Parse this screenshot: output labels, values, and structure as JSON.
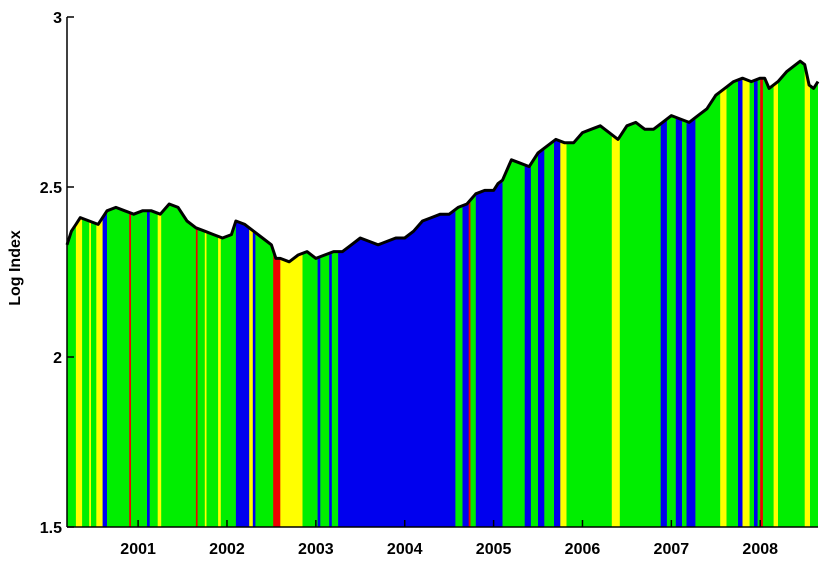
{
  "chart_data": {
    "type": "area",
    "title": "",
    "xlabel": "",
    "ylabel": "Log Index",
    "xlim": [
      2000.2,
      2008.65
    ],
    "ylim": [
      1.5,
      3
    ],
    "x_ticks": [
      {
        "value": 2001,
        "label": "2001"
      },
      {
        "value": 2002,
        "label": "2002"
      },
      {
        "value": 2003,
        "label": "2003"
      },
      {
        "value": 2004,
        "label": "2004"
      },
      {
        "value": 2005,
        "label": "2005"
      },
      {
        "value": 2006,
        "label": "2006"
      },
      {
        "value": 2007,
        "label": "2007"
      },
      {
        "value": 2008,
        "label": "2008"
      }
    ],
    "y_ticks": [
      {
        "value": 1.5,
        "label": "1.5"
      },
      {
        "value": 2,
        "label": "2"
      },
      {
        "value": 2.5,
        "label": "2.5"
      },
      {
        "value": 3,
        "label": "3"
      }
    ],
    "grid": false,
    "legend": "none",
    "regime_colors": {
      "green": "#00ee00",
      "yellow": "#ffff00",
      "blue": "#0000ee",
      "red": "#ee0000"
    },
    "series": [
      {
        "x": [
          2000.2,
          2000.25,
          2000.3,
          2000.35,
          2000.45,
          2000.55,
          2000.65,
          2000.75,
          2000.85,
          2000.95,
          2001.05,
          2001.15,
          2001.25,
          2001.35,
          2001.45,
          2001.55,
          2001.65,
          2001.75,
          2001.85,
          2001.95,
          2002.05,
          2002.1,
          2002.2,
          2002.3,
          2002.4,
          2002.5,
          2002.55,
          2002.6,
          2002.7,
          2002.8,
          2002.9,
          2003.0,
          2003.1,
          2003.2,
          2003.3,
          2003.4,
          2003.5,
          2003.6,
          2003.7,
          2003.8,
          2003.9,
          2004.0,
          2004.1,
          2004.2,
          2004.3,
          2004.4,
          2004.5,
          2004.6,
          2004.7,
          2004.8,
          2004.9,
          2005.0,
          2005.05,
          2005.1,
          2005.2,
          2005.3,
          2005.4,
          2005.5,
          2005.6,
          2005.7,
          2005.8,
          2005.9,
          2006.0,
          2006.1,
          2006.2,
          2006.3,
          2006.4,
          2006.5,
          2006.6,
          2006.7,
          2006.8,
          2006.9,
          2007.0,
          2007.1,
          2007.2,
          2007.3,
          2007.4,
          2007.5,
          2007.6,
          2007.7,
          2007.8,
          2007.9,
          2008.0,
          2008.05,
          2008.1,
          2008.2,
          2008.3,
          2008.4,
          2008.45,
          2008.5,
          2008.55,
          2008.6,
          2008.65
        ],
        "y": [
          2.33,
          2.37,
          2.39,
          2.41,
          2.4,
          2.39,
          2.43,
          2.44,
          2.43,
          2.42,
          2.43,
          2.43,
          2.42,
          2.45,
          2.44,
          2.4,
          2.38,
          2.37,
          2.36,
          2.35,
          2.36,
          2.4,
          2.39,
          2.37,
          2.35,
          2.33,
          2.29,
          2.29,
          2.28,
          2.3,
          2.31,
          2.29,
          2.3,
          2.31,
          2.31,
          2.33,
          2.35,
          2.34,
          2.33,
          2.34,
          2.35,
          2.35,
          2.37,
          2.4,
          2.41,
          2.42,
          2.42,
          2.44,
          2.45,
          2.48,
          2.49,
          2.49,
          2.51,
          2.52,
          2.58,
          2.57,
          2.56,
          2.6,
          2.62,
          2.64,
          2.63,
          2.63,
          2.66,
          2.67,
          2.68,
          2.66,
          2.64,
          2.68,
          2.69,
          2.67,
          2.67,
          2.69,
          2.71,
          2.7,
          2.69,
          2.71,
          2.73,
          2.77,
          2.79,
          2.81,
          2.82,
          2.81,
          2.82,
          2.82,
          2.79,
          2.81,
          2.84,
          2.86,
          2.87,
          2.86,
          2.8,
          2.79,
          2.81
        ]
      }
    ],
    "regime_bands": [
      {
        "start": 2000.2,
        "end": 2000.3,
        "color": "green"
      },
      {
        "start": 2000.3,
        "end": 2000.37,
        "color": "yellow"
      },
      {
        "start": 2000.37,
        "end": 2000.45,
        "color": "green"
      },
      {
        "start": 2000.45,
        "end": 2000.47,
        "color": "yellow"
      },
      {
        "start": 2000.47,
        "end": 2000.53,
        "color": "green"
      },
      {
        "start": 2000.53,
        "end": 2000.6,
        "color": "yellow"
      },
      {
        "start": 2000.6,
        "end": 2000.65,
        "color": "blue"
      },
      {
        "start": 2000.65,
        "end": 2000.9,
        "color": "green"
      },
      {
        "start": 2000.9,
        "end": 2000.92,
        "color": "red"
      },
      {
        "start": 2000.92,
        "end": 2001.1,
        "color": "green"
      },
      {
        "start": 2001.1,
        "end": 2001.13,
        "color": "blue"
      },
      {
        "start": 2001.13,
        "end": 2001.22,
        "color": "green"
      },
      {
        "start": 2001.22,
        "end": 2001.26,
        "color": "yellow"
      },
      {
        "start": 2001.26,
        "end": 2001.65,
        "color": "green"
      },
      {
        "start": 2001.65,
        "end": 2001.67,
        "color": "red"
      },
      {
        "start": 2001.67,
        "end": 2001.75,
        "color": "green"
      },
      {
        "start": 2001.75,
        "end": 2001.77,
        "color": "yellow"
      },
      {
        "start": 2001.77,
        "end": 2001.9,
        "color": "green"
      },
      {
        "start": 2001.9,
        "end": 2001.93,
        "color": "yellow"
      },
      {
        "start": 2001.93,
        "end": 2002.1,
        "color": "green"
      },
      {
        "start": 2002.1,
        "end": 2002.25,
        "color": "blue"
      },
      {
        "start": 2002.25,
        "end": 2002.29,
        "color": "yellow"
      },
      {
        "start": 2002.29,
        "end": 2002.32,
        "color": "blue"
      },
      {
        "start": 2002.32,
        "end": 2002.52,
        "color": "green"
      },
      {
        "start": 2002.52,
        "end": 2002.6,
        "color": "red"
      },
      {
        "start": 2002.6,
        "end": 2002.85,
        "color": "yellow"
      },
      {
        "start": 2002.85,
        "end": 2003.02,
        "color": "green"
      },
      {
        "start": 2003.02,
        "end": 2003.05,
        "color": "blue"
      },
      {
        "start": 2003.05,
        "end": 2003.15,
        "color": "green"
      },
      {
        "start": 2003.15,
        "end": 2003.18,
        "color": "blue"
      },
      {
        "start": 2003.18,
        "end": 2003.25,
        "color": "green"
      },
      {
        "start": 2003.25,
        "end": 2004.57,
        "color": "blue"
      },
      {
        "start": 2004.57,
        "end": 2004.65,
        "color": "green"
      },
      {
        "start": 2004.65,
        "end": 2004.72,
        "color": "blue"
      },
      {
        "start": 2004.72,
        "end": 2004.74,
        "color": "red"
      },
      {
        "start": 2004.74,
        "end": 2004.8,
        "color": "green"
      },
      {
        "start": 2004.8,
        "end": 2005.1,
        "color": "blue"
      },
      {
        "start": 2005.1,
        "end": 2005.35,
        "color": "green"
      },
      {
        "start": 2005.35,
        "end": 2005.42,
        "color": "blue"
      },
      {
        "start": 2005.42,
        "end": 2005.5,
        "color": "green"
      },
      {
        "start": 2005.5,
        "end": 2005.57,
        "color": "blue"
      },
      {
        "start": 2005.57,
        "end": 2005.68,
        "color": "green"
      },
      {
        "start": 2005.68,
        "end": 2005.75,
        "color": "blue"
      },
      {
        "start": 2005.75,
        "end": 2005.82,
        "color": "yellow"
      },
      {
        "start": 2005.82,
        "end": 2006.33,
        "color": "green"
      },
      {
        "start": 2006.33,
        "end": 2006.42,
        "color": "yellow"
      },
      {
        "start": 2006.42,
        "end": 2006.88,
        "color": "green"
      },
      {
        "start": 2006.88,
        "end": 2006.95,
        "color": "blue"
      },
      {
        "start": 2006.95,
        "end": 2007.05,
        "color": "green"
      },
      {
        "start": 2007.05,
        "end": 2007.12,
        "color": "blue"
      },
      {
        "start": 2007.12,
        "end": 2007.17,
        "color": "green"
      },
      {
        "start": 2007.17,
        "end": 2007.27,
        "color": "blue"
      },
      {
        "start": 2007.27,
        "end": 2007.55,
        "color": "green"
      },
      {
        "start": 2007.55,
        "end": 2007.62,
        "color": "yellow"
      },
      {
        "start": 2007.62,
        "end": 2007.75,
        "color": "green"
      },
      {
        "start": 2007.75,
        "end": 2007.8,
        "color": "blue"
      },
      {
        "start": 2007.8,
        "end": 2007.88,
        "color": "yellow"
      },
      {
        "start": 2007.88,
        "end": 2007.93,
        "color": "green"
      },
      {
        "start": 2007.93,
        "end": 2007.97,
        "color": "blue"
      },
      {
        "start": 2007.97,
        "end": 2008.0,
        "color": "green"
      },
      {
        "start": 2008.0,
        "end": 2008.03,
        "color": "red"
      },
      {
        "start": 2008.03,
        "end": 2008.15,
        "color": "green"
      },
      {
        "start": 2008.15,
        "end": 2008.2,
        "color": "yellow"
      },
      {
        "start": 2008.2,
        "end": 2008.5,
        "color": "green"
      },
      {
        "start": 2008.5,
        "end": 2008.56,
        "color": "yellow"
      },
      {
        "start": 2008.56,
        "end": 2008.65,
        "color": "green"
      }
    ]
  }
}
